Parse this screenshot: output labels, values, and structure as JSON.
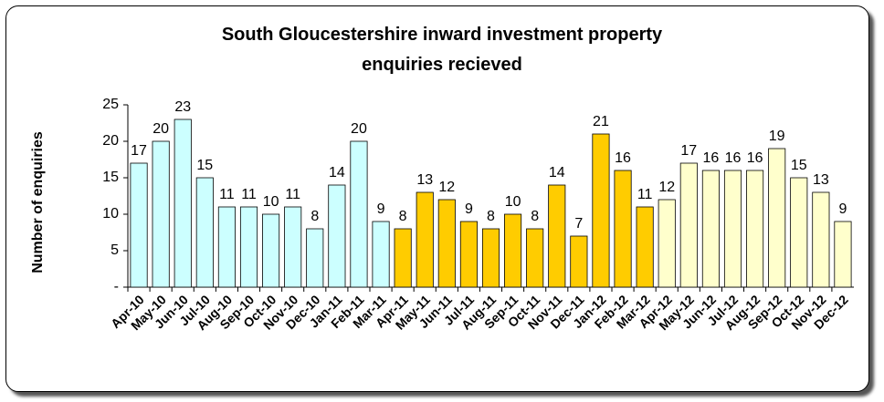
{
  "chart_data": {
    "type": "bar",
    "title": "South Gloucestershire inward investment property enquiries recieved",
    "y_label": "Number of enquiries",
    "categories": [
      "Apr-10",
      "May-10",
      "Jun-10",
      "Jul-10",
      "Aug-10",
      "Sep-10",
      "Oct-10",
      "Nov-10",
      "Dec-10",
      "Jan-11",
      "Feb-11",
      "Mar-11",
      "Apr-11",
      "May-11",
      "Jun-11",
      "Jul-11",
      "Aug-11",
      "Sep-11",
      "Oct-11",
      "Nov-11",
      "Dec-11",
      "Jan-12",
      "Feb-12",
      "Mar-12",
      "Apr-12",
      "May-12",
      "Jun-12",
      "Jul-12",
      "Aug-12",
      "Sep-12",
      "Oct-12",
      "Nov-12",
      "Dec-12"
    ],
    "values": [
      17,
      20,
      23,
      15,
      11,
      11,
      10,
      11,
      8,
      14,
      20,
      9,
      8,
      13,
      12,
      9,
      8,
      10,
      8,
      14,
      7,
      21,
      16,
      11,
      12,
      17,
      16,
      16,
      16,
      19,
      15,
      13,
      9
    ],
    "colors": [
      "#ccffff",
      "#ccffff",
      "#ccffff",
      "#ccffff",
      "#ccffff",
      "#ccffff",
      "#ccffff",
      "#ccffff",
      "#ccffff",
      "#ccffff",
      "#ccffff",
      "#ccffff",
      "#ffcc00",
      "#ffcc00",
      "#ffcc00",
      "#ffcc00",
      "#ffcc00",
      "#ffcc00",
      "#ffcc00",
      "#ffcc00",
      "#ffcc00",
      "#ffcc00",
      "#ffcc00",
      "#ffcc00",
      "#ffffcc",
      "#ffffcc",
      "#ffffcc",
      "#ffffcc",
      "#ffffcc",
      "#ffffcc",
      "#ffffcc",
      "#ffffcc",
      "#ffffcc"
    ],
    "ylim": [
      0,
      25
    ],
    "yticks": [
      {
        "value": 0,
        "label": "-"
      },
      5,
      10,
      15,
      20,
      25
    ],
    "grid": false
  }
}
